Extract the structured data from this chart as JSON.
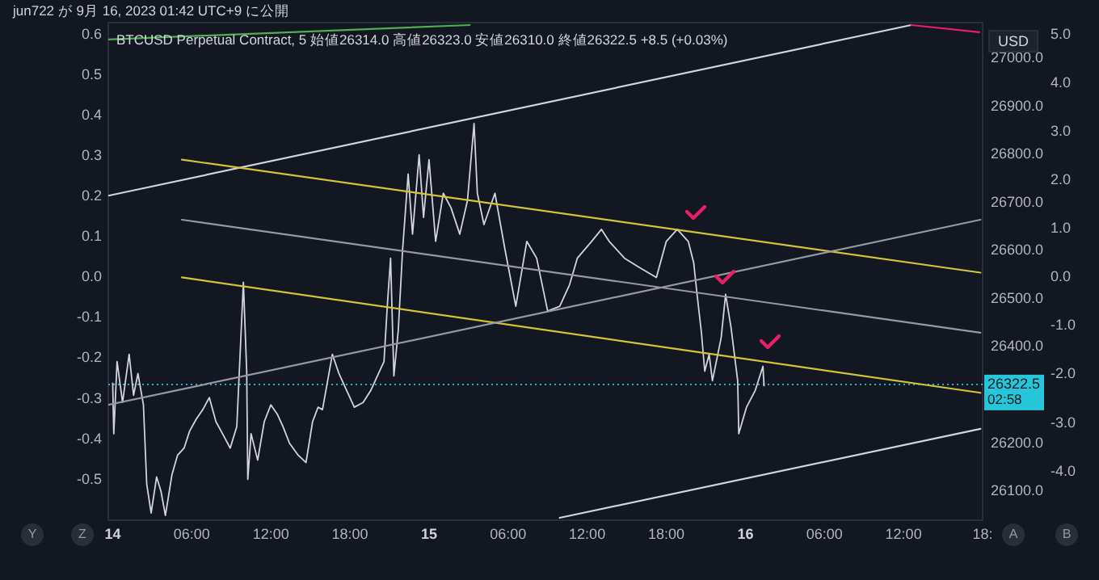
{
  "chart_data": {
    "type": "line",
    "title": "jun722 が 9月 16, 2023 01:42 UTC+9 に公開",
    "subtitle": "BTCUSD Perpetual Contract, 5 始値26314.0 高値26323.0 安値26310.0 終値26322.5 +8.5 (+0.03%)",
    "ylabel": "USD",
    "annotations": [
      "02:58",
      "Y",
      "Z",
      "A",
      "B"
    ],
    "xlim": [
      "2023-09-13T23:40",
      "2023-09-16T18:00"
    ],
    "xticks": [
      {
        "value": "2023-09-14",
        "label": "14"
      },
      {
        "value": "2023-09-14T06:00",
        "label": "06:00"
      },
      {
        "value": "2023-09-14T12:00",
        "label": "12:00"
      },
      {
        "value": "2023-09-14T18:00",
        "label": "18:00"
      },
      {
        "value": "2023-09-15",
        "label": "15"
      },
      {
        "value": "2023-09-15T06:00",
        "label": "06:00"
      },
      {
        "value": "2023-09-15T12:00",
        "label": "12:00"
      },
      {
        "value": "2023-09-15T18:00",
        "label": "18:00"
      },
      {
        "value": "2023-09-16",
        "label": "16"
      },
      {
        "value": "2023-09-16T06:00",
        "label": "06:00"
      },
      {
        "value": "2023-09-16T12:00",
        "label": "12:00"
      },
      {
        "value": "2023-09-16T18:00",
        "label": "18:"
      }
    ],
    "ylim": [
      26040,
      27075
    ],
    "yticks": [
      {
        "value": 26100,
        "label": "26100.0"
      },
      {
        "value": 26200,
        "label": "26200.0"
      },
      {
        "value": 26400,
        "label": "26400.0"
      },
      {
        "value": 26500,
        "label": "26500.0"
      },
      {
        "value": 26600,
        "label": "26600.0"
      },
      {
        "value": 26700,
        "label": "26700.0"
      },
      {
        "value": 26800,
        "label": "26800.0"
      },
      {
        "value": 26900,
        "label": "26900.0"
      },
      {
        "value": 27000,
        "label": "27000.0"
      }
    ],
    "y2lim": [
      -5,
      5.25
    ],
    "y2ticks": [
      {
        "value": -4,
        "label": "-4.0"
      },
      {
        "value": -3,
        "label": "-3.0"
      },
      {
        "value": -2,
        "label": "-2.0"
      },
      {
        "value": -1,
        "label": "-1.0"
      },
      {
        "value": 0,
        "label": "0.0"
      },
      {
        "value": 1,
        "label": "1.0"
      },
      {
        "value": 2,
        "label": "2.0"
      },
      {
        "value": 3,
        "label": "3.0"
      },
      {
        "value": 4,
        "label": "4.0"
      },
      {
        "value": 5,
        "label": "5.0"
      }
    ],
    "y3lim": [
      -0.6,
      0.63
    ],
    "y3ticks": [
      {
        "value": -0.5,
        "label": "-0.5"
      },
      {
        "value": -0.4,
        "label": "-0.4"
      },
      {
        "value": -0.3,
        "label": "-0.3"
      },
      {
        "value": -0.2,
        "label": "-0.2"
      },
      {
        "value": -0.1,
        "label": "-0.1"
      },
      {
        "value": 0,
        "label": "0.0"
      },
      0.1,
      0.2,
      0.3,
      0.4,
      0.5,
      0.6
    ],
    "line_style": "solid",
    "series": [
      {
        "color": "#d1d4dc",
        "x": [
          "2023-09-14T00:00",
          "2023-09-14T00:05",
          "2023-09-14T00:20",
          "2023-09-14T00:45",
          "2023-09-14T01:15",
          "2023-09-14T01:35",
          "2023-09-14T01:55",
          "2023-09-14T02:20",
          "2023-09-14T02:35",
          "2023-09-14T02:55",
          "2023-09-14T03:20",
          "2023-09-14T03:40",
          "2023-09-14T04:00",
          "2023-09-14T04:30",
          "2023-09-14T04:55",
          "2023-09-14T05:25",
          "2023-09-14T05:50",
          "2023-09-14T06:20",
          "2023-09-14T06:50",
          "2023-09-14T07:20",
          "2023-09-14T07:50",
          "2023-09-14T08:20",
          "2023-09-14T08:55",
          "2023-09-14T09:25",
          "2023-09-14T09:55",
          "2023-09-14T10:10",
          "2023-09-14T10:15",
          "2023-09-14T10:30",
          "2023-09-14T11:00",
          "2023-09-14T11:30",
          "2023-09-14T12:00",
          "2023-09-14T12:30",
          "2023-09-14T12:55",
          "2023-09-14T13:25",
          "2023-09-14T14:05",
          "2023-09-14T14:40",
          "2023-09-14T15:10",
          "2023-09-14T15:35",
          "2023-09-14T15:55",
          "2023-09-14T16:40",
          "2023-09-14T17:10",
          "2023-09-14T17:35",
          "2023-09-14T18:20",
          "2023-09-14T19:00",
          "2023-09-14T19:35",
          "2023-09-14T20:10",
          "2023-09-14T20:35",
          "2023-09-14T20:50",
          "2023-09-14T21:05",
          "2023-09-14T21:20",
          "2023-09-14T21:40",
          "2023-09-14T22:00",
          "2023-09-14T22:25",
          "2023-09-14T22:45",
          "2023-09-14T23:15",
          "2023-09-14T23:35",
          "2023-09-15T00:00",
          "2023-09-15T00:30",
          "2023-09-15T01:05",
          "2023-09-15T01:40",
          "2023-09-15T02:20",
          "2023-09-15T02:55",
          "2023-09-15T03:25",
          "2023-09-15T03:40",
          "2023-09-15T04:10",
          "2023-09-15T05:00",
          "2023-09-15T05:45",
          "2023-09-15T06:35",
          "2023-09-15T07:25",
          "2023-09-15T08:10",
          "2023-09-15T09:00",
          "2023-09-15T09:55",
          "2023-09-15T10:40",
          "2023-09-15T11:15",
          "2023-09-15T12:20",
          "2023-09-15T13:05",
          "2023-09-15T13:40",
          "2023-09-15T14:50",
          "2023-09-15T16:00",
          "2023-09-15T17:15",
          "2023-09-15T18:00",
          "2023-09-15T18:50",
          "2023-09-15T19:40",
          "2023-09-15T20:05",
          "2023-09-15T20:20",
          "2023-09-15T20:40",
          "2023-09-15T20:55",
          "2023-09-15T21:15",
          "2023-09-15T21:30",
          "2023-09-15T22:10",
          "2023-09-15T22:30",
          "2023-09-15T22:55",
          "2023-09-15T23:25",
          "2023-09-15T23:30",
          "2023-09-16T00:05",
          "2023-09-16T00:45",
          "2023-09-16T01:20",
          "2023-09-16T01:25"
        ],
        "values": [
          26325,
          26220,
          26370,
          26285,
          26385,
          26300,
          26345,
          26280,
          26115,
          26055,
          26130,
          26100,
          26050,
          26135,
          26175,
          26190,
          26225,
          26250,
          26270,
          26295,
          26245,
          26220,
          26190,
          26235,
          26535,
          26350,
          26125,
          26220,
          26165,
          26245,
          26280,
          26260,
          26235,
          26200,
          26175,
          26160,
          26245,
          26275,
          26270,
          26385,
          26345,
          26320,
          26275,
          26285,
          26310,
          26345,
          26370,
          26485,
          26585,
          26340,
          26435,
          26605,
          26760,
          26635,
          26800,
          26670,
          26790,
          26620,
          26720,
          26690,
          26635,
          26705,
          26865,
          26720,
          26655,
          26720,
          26605,
          26485,
          26620,
          26585,
          26475,
          26485,
          26530,
          26585,
          26620,
          26645,
          26620,
          26585,
          26565,
          26545,
          26620,
          26645,
          26620,
          26575,
          26510,
          26430,
          26350,
          26385,
          26330,
          26420,
          26510,
          26440,
          26330,
          26220,
          26275,
          26310,
          26360,
          26320
        ]
      },
      {
        "color": "#d1d4dc",
        "x": [
          "2023-09-13T23:40",
          "2023-09-16T12:35"
        ],
        "values": [
          26715,
          27070
        ]
      },
      {
        "color": "#e91e63",
        "x": [
          "2023-09-16T12:35",
          "2023-09-16T17:45"
        ],
        "values": [
          27070,
          27055
        ]
      },
      {
        "color": "#4caf50",
        "x": [
          "2023-09-13T23:40",
          "2023-09-15T03:05"
        ],
        "values": [
          27040,
          27070
        ]
      },
      {
        "color": "#d4c43a",
        "x": [
          "2023-09-14T05:15",
          "2023-09-16T17:50"
        ],
        "values": [
          26790,
          26555
        ]
      },
      {
        "color": "#d4c43a",
        "x": [
          "2023-09-14T05:15",
          "2023-09-16T17:50"
        ],
        "values": [
          26545,
          26305
        ]
      },
      {
        "color": "#9598a1",
        "x": [
          "2023-09-14T05:15",
          "2023-09-16T17:50"
        ],
        "values": [
          26665,
          26430
        ]
      },
      {
        "color": "#9598a1",
        "x": [
          "2023-09-13T23:40",
          "2023-09-16T17:50"
        ],
        "values": [
          26280,
          26665
        ]
      },
      {
        "color": "#d1d4dc",
        "x": [
          "2023-09-15T09:55",
          "2023-09-16T17:50"
        ],
        "values": [
          26045,
          26230
        ]
      }
    ],
    "ref_lines": [
      {
        "axis": "y",
        "value": 26322.5,
        "label": "26322.5",
        "color": "#26c6da",
        "line_style": "dotted"
      }
    ]
  }
}
